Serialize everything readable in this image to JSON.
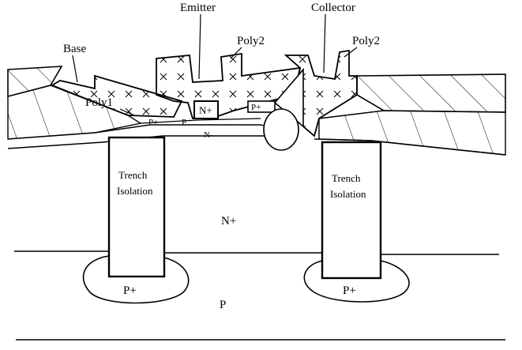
{
  "labels": {
    "emitter": "Emitter",
    "collector": "Collector",
    "base": "Base",
    "poly2_left": "Poly2",
    "poly2_right": "Poly2",
    "poly1": "Poly1",
    "n_plus_emitter": "N+",
    "p_plus_left": "P+",
    "p_base": "P",
    "p_plus_right": "P+",
    "n_minus": "N-",
    "trench_left_line1": "Trench",
    "trench_left_line2": "Isolation",
    "trench_right_line1": "Trench",
    "trench_right_line2": "Isolation",
    "n_plus_buried": "N+",
    "p_plus_left_bottom": "P+",
    "p_plus_right_bottom": "P+",
    "p_substrate": "P"
  }
}
